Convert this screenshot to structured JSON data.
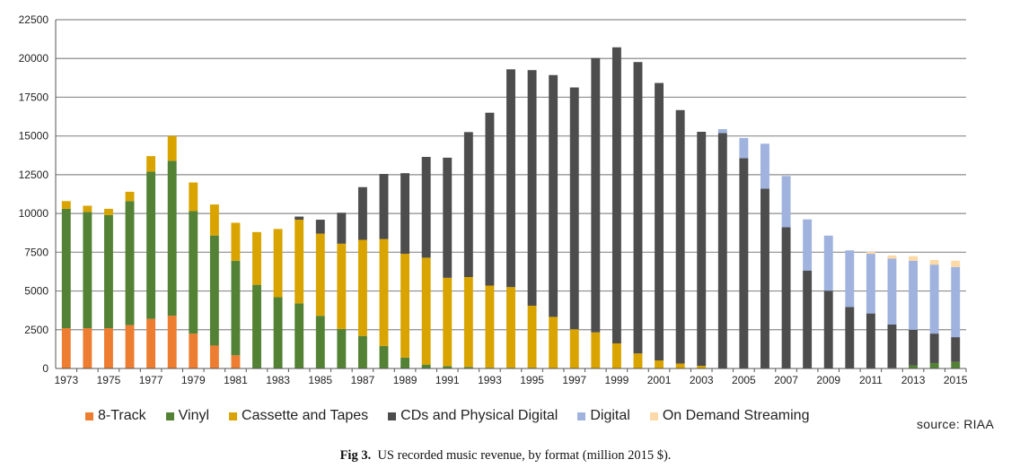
{
  "chart_data": {
    "type": "bar",
    "stacked": true,
    "ylim": [
      0,
      22500
    ],
    "yticks": [
      0,
      2500,
      5000,
      7500,
      10000,
      12500,
      15000,
      17500,
      20000,
      22500
    ],
    "xtick_labels": [
      "1973",
      "1975",
      "1977",
      "1979",
      "1981",
      "1983",
      "1985",
      "1987",
      "1989",
      "1991",
      "1993",
      "1995",
      "1997",
      "1999",
      "2001",
      "2003",
      "2005",
      "2007",
      "2009",
      "2011",
      "2013",
      "2015"
    ],
    "grid": true,
    "categories": [
      "1973",
      "1974",
      "1975",
      "1976",
      "1977",
      "1978",
      "1979",
      "1980",
      "1981",
      "1982",
      "1983",
      "1984",
      "1985",
      "1986",
      "1987",
      "1988",
      "1989",
      "1990",
      "1991",
      "1992",
      "1993",
      "1994",
      "1995",
      "1996",
      "1997",
      "1998",
      "1999",
      "2000",
      "2001",
      "2002",
      "2003",
      "2004",
      "2005",
      "2006",
      "2007",
      "2008",
      "2009",
      "2010",
      "2011",
      "2012",
      "2013",
      "2014",
      "2015"
    ],
    "series": [
      {
        "name": "8-Track",
        "color": "#ed7d31",
        "values": [
          2600,
          2600,
          2600,
          2800,
          3200,
          3400,
          2250,
          1480,
          850,
          0,
          0,
          0,
          0,
          0,
          0,
          0,
          0,
          0,
          0,
          0,
          0,
          0,
          0,
          0,
          0,
          0,
          0,
          0,
          0,
          0,
          0,
          0,
          0,
          0,
          0,
          0,
          0,
          0,
          0,
          0,
          0,
          0,
          0
        ]
      },
      {
        "name": "Vinyl",
        "color": "#548235",
        "values": [
          7700,
          7500,
          7300,
          8000,
          9500,
          10000,
          7900,
          7100,
          6100,
          5400,
          4600,
          4200,
          3400,
          2550,
          2100,
          1450,
          700,
          250,
          150,
          100,
          50,
          50,
          50,
          30,
          30,
          30,
          20,
          20,
          20,
          20,
          20,
          20,
          20,
          20,
          20,
          20,
          20,
          20,
          30,
          40,
          200,
          350,
          420
        ]
      },
      {
        "name": "Cassette and Tapes",
        "color": "#d9a400",
        "values": [
          500,
          400,
          400,
          600,
          1000,
          1600,
          1850,
          2000,
          2450,
          3400,
          4400,
          5400,
          5300,
          5500,
          6200,
          6900,
          6700,
          6900,
          5700,
          5800,
          5300,
          5200,
          4000,
          3300,
          2500,
          2300,
          1600,
          950,
          500,
          300,
          150,
          0,
          0,
          0,
          0,
          0,
          0,
          0,
          0,
          0,
          0,
          0,
          0
        ]
      },
      {
        "name": "CDs and Physical Digital",
        "color": "#4d4d4d",
        "values": [
          0,
          0,
          0,
          0,
          0,
          0,
          0,
          0,
          0,
          0,
          0,
          200,
          900,
          2000,
          3400,
          4200,
          5200,
          6500,
          7750,
          9350,
          11150,
          14050,
          15200,
          15600,
          15600,
          17700,
          19100,
          18800,
          17900,
          16350,
          15100,
          15170,
          13550,
          11580,
          9100,
          6300,
          5000,
          3950,
          3520,
          2800,
          2300,
          1900,
          1600
        ]
      },
      {
        "name": "Digital",
        "color": "#9fb3de",
        "values": [
          0,
          0,
          0,
          0,
          0,
          0,
          0,
          0,
          0,
          0,
          0,
          0,
          0,
          0,
          0,
          0,
          0,
          0,
          0,
          0,
          0,
          0,
          0,
          0,
          0,
          0,
          0,
          0,
          0,
          0,
          0,
          250,
          1300,
          2900,
          3300,
          3300,
          3550,
          3650,
          3850,
          4250,
          4450,
          4450,
          4530
        ]
      },
      {
        "name": "On Demand Streaming",
        "color": "#fcd9a6",
        "values": [
          0,
          0,
          0,
          0,
          0,
          0,
          0,
          0,
          0,
          0,
          0,
          0,
          0,
          0,
          0,
          0,
          0,
          0,
          0,
          0,
          0,
          0,
          0,
          0,
          0,
          0,
          0,
          0,
          0,
          0,
          0,
          0,
          0,
          0,
          0,
          0,
          0,
          0,
          120,
          200,
          300,
          300,
          400
        ]
      }
    ]
  },
  "legend": {
    "items": [
      {
        "label": "8-Track",
        "color": "#ed7d31"
      },
      {
        "label": "Vinyl",
        "color": "#548235"
      },
      {
        "label": "Cassette and Tapes",
        "color": "#d9a400"
      },
      {
        "label": "CDs and Physical Digital",
        "color": "#4d4d4d"
      },
      {
        "label": "Digital",
        "color": "#9fb3de"
      },
      {
        "label": "On Demand Streaming",
        "color": "#fcd9a6"
      }
    ]
  },
  "source": "source: RIAA",
  "caption": {
    "prefix": "Fig 3.",
    "text": "US recorded music revenue, by format (million 2015 $)."
  }
}
